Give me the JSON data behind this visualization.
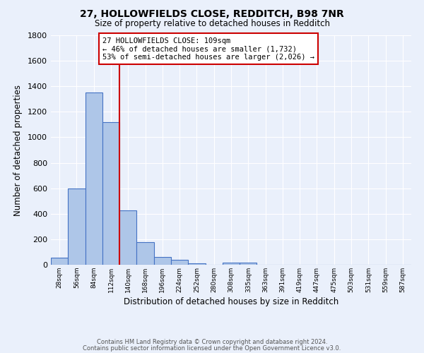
{
  "title1": "27, HOLLOWFIELDS CLOSE, REDDITCH, B98 7NR",
  "title2": "Size of property relative to detached houses in Redditch",
  "xlabel": "Distribution of detached houses by size in Redditch",
  "ylabel": "Number of detached properties",
  "footnote1": "Contains HM Land Registry data © Crown copyright and database right 2024.",
  "footnote2": "Contains public sector information licensed under the Open Government Licence v3.0.",
  "bin_labels": [
    "28sqm",
    "56sqm",
    "84sqm",
    "112sqm",
    "140sqm",
    "168sqm",
    "196sqm",
    "224sqm",
    "252sqm",
    "280sqm",
    "308sqm",
    "335sqm",
    "363sqm",
    "391sqm",
    "419sqm",
    "447sqm",
    "475sqm",
    "503sqm",
    "531sqm",
    "559sqm",
    "587sqm"
  ],
  "bar_values": [
    58,
    600,
    1350,
    1120,
    425,
    175,
    60,
    38,
    12,
    0,
    18,
    18,
    0,
    0,
    0,
    0,
    0,
    0,
    0,
    0,
    0
  ],
  "bar_color": "#aec6e8",
  "bar_edge_color": "#4472c4",
  "bg_color": "#eaf0fb",
  "grid_color": "#ffffff",
  "vline_color": "#cc0000",
  "ylim": [
    0,
    1800
  ],
  "yticks": [
    0,
    200,
    400,
    600,
    800,
    1000,
    1200,
    1400,
    1600,
    1800
  ],
  "annotation_text": "27 HOLLOWFIELDS CLOSE: 109sqm\n← 46% of detached houses are smaller (1,732)\n53% of semi-detached houses are larger (2,026) →",
  "annotation_box_color": "#ffffff",
  "annotation_box_edge": "#cc0000",
  "bin_width": 28,
  "vline_bin_index": 3
}
